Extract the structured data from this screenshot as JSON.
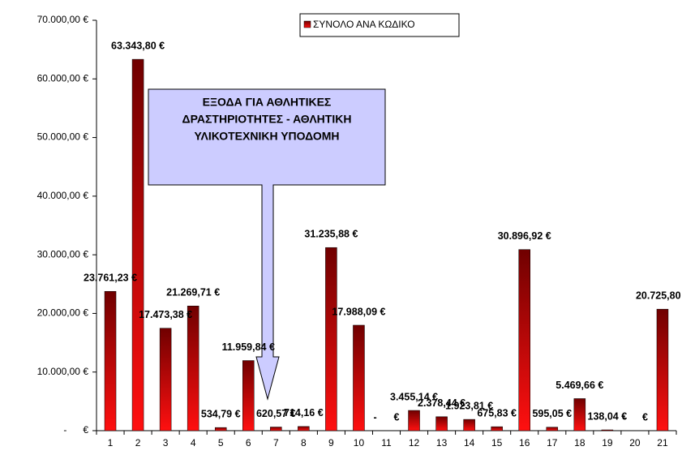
{
  "chart_data": {
    "type": "bar",
    "annotation": [
      "ΕΞΟΔΑ ΓΙΑ ΑΘΛΗΤΙΚΕΣ",
      "ΔΡΑΣΤΗΡΙΟΤΗΤΕΣ - ΑΘΛΗΤΙΚΗ",
      "ΥΛΙΚΟΤΕΧΝΙΚΗ ΥΠΟΔΟΜΗ"
    ],
    "categories": [
      "1",
      "2",
      "3",
      "4",
      "5",
      "6",
      "7",
      "8",
      "9",
      "10",
      "11",
      "12",
      "13",
      "14",
      "15",
      "16",
      "17",
      "18",
      "19",
      "20",
      "21"
    ],
    "series": [
      {
        "name": "ΣΥΝΟΛΟ ΑΝΑ ΚΩΔΙΚΟ",
        "color": "#e00000",
        "values": [
          23761.23,
          63343.8,
          17473.38,
          21269.71,
          534.79,
          11959.84,
          620.57,
          714.16,
          31235.88,
          17988.09,
          0,
          3455.14,
          2378.44,
          1923.81,
          675.83,
          30896.92,
          595.05,
          5469.66,
          138.04,
          0,
          20725.8
        ],
        "value_labels": [
          "23.761,23 €",
          "63.343,80 €",
          "17.473,38 €",
          "21.269,71 €",
          "534,79 €",
          "11.959,84 €",
          "620,57 €",
          "714,16 €",
          "31.235,88 €",
          "17.988,09 €",
          "-      €",
          "3.455,14 €",
          "2.378,44 €",
          "1.923,81 €",
          "675,83 €",
          "30.896,92 €",
          "595,05 €",
          "5.469,66 €",
          "138,04 €",
          "-      €",
          "20.725,80 €"
        ]
      }
    ],
    "ylim": [
      0,
      70000
    ],
    "yticks": [
      {
        "value": 0,
        "label": "-      €"
      },
      {
        "value": 10000,
        "label": "10.000,00 €"
      },
      {
        "value": 20000,
        "label": "20.000,00 €"
      },
      {
        "value": 30000,
        "label": "30.000,00 €"
      },
      {
        "value": 40000,
        "label": "40.000,00 €"
      },
      {
        "value": 50000,
        "label": "50.000,00 €"
      },
      {
        "value": 60000,
        "label": "60.000,00 €"
      },
      {
        "value": 70000,
        "label": "70.000,00 €"
      }
    ],
    "legend": "top"
  }
}
